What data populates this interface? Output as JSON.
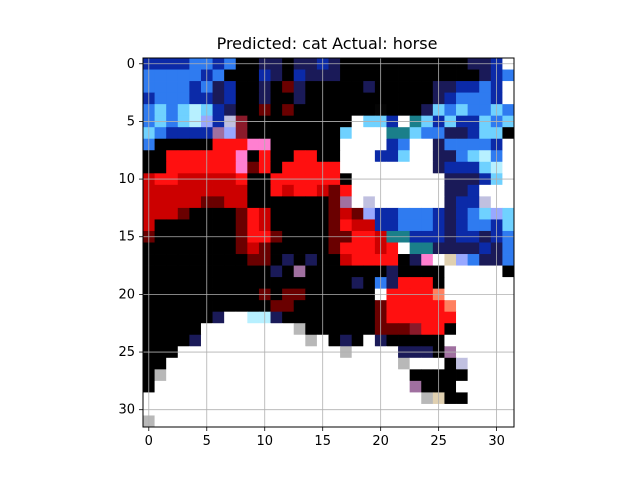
{
  "figure": {
    "title": "Predicted: cat Actual: horse",
    "predicted_label": "cat",
    "actual_label": "horse"
  },
  "image_data": {
    "type": "image",
    "width": 32,
    "height": 32,
    "grid": true,
    "xticks": [
      0,
      5,
      10,
      15,
      20,
      25,
      30
    ],
    "yticks": [
      0,
      5,
      10,
      15,
      20,
      25,
      30
    ],
    "legend": "[",
    "pixels": [
      "#f2ebf7",
      "#1a3bc1",
      "#112c84",
      "#1d2c96",
      "#1f34a4",
      "#1d2c96",
      "#1e327c",
      "#000010",
      "#000006",
      "#000010",
      "#0e0d13",
      "#0e0c13",
      "#0d081b",
      "#09122c",
      "#0b0d42",
      "#0e0f45",
      "#000015",
      "#000000",
      "#000000",
      "#000000",
      "#000000",
      "#000000",
      "#000000",
      "#000000",
      "#000000",
      "#000000",
      "#000000",
      "#000000",
      "#000000",
      "#000005",
      "#1c3ea7",
      "#ffffff"
    ]
  }
}
